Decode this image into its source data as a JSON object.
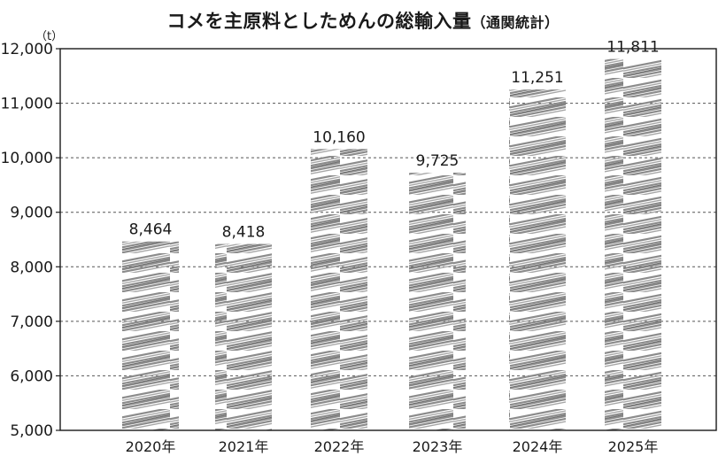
{
  "chart_data": {
    "type": "bar",
    "title": "コメを主原料としためんの総輸入量",
    "subtitle": "（通関統計）",
    "ylabel": "（t）",
    "xlabel": "",
    "categories": [
      "2020年",
      "2021年",
      "2022年",
      "2023年",
      "2024年",
      "2025年"
    ],
    "values": [
      8464,
      8418,
      10160,
      9725,
      11251,
      11811
    ],
    "data_labels": [
      "8,464",
      "8,418",
      "10,160",
      "9,725",
      "11,251",
      "11,811"
    ],
    "ylim": [
      5000,
      12000
    ],
    "yticks": [
      5000,
      6000,
      7000,
      8000,
      9000,
      10000,
      11000,
      12000
    ],
    "ytick_labels": [
      "5,000",
      "6,000",
      "7,000",
      "8,000",
      "9,000",
      "10,000",
      "11,000",
      "12,000"
    ],
    "grid": true,
    "bar_style": "hatched-scribble",
    "bar_color": "#8c8c8c"
  }
}
